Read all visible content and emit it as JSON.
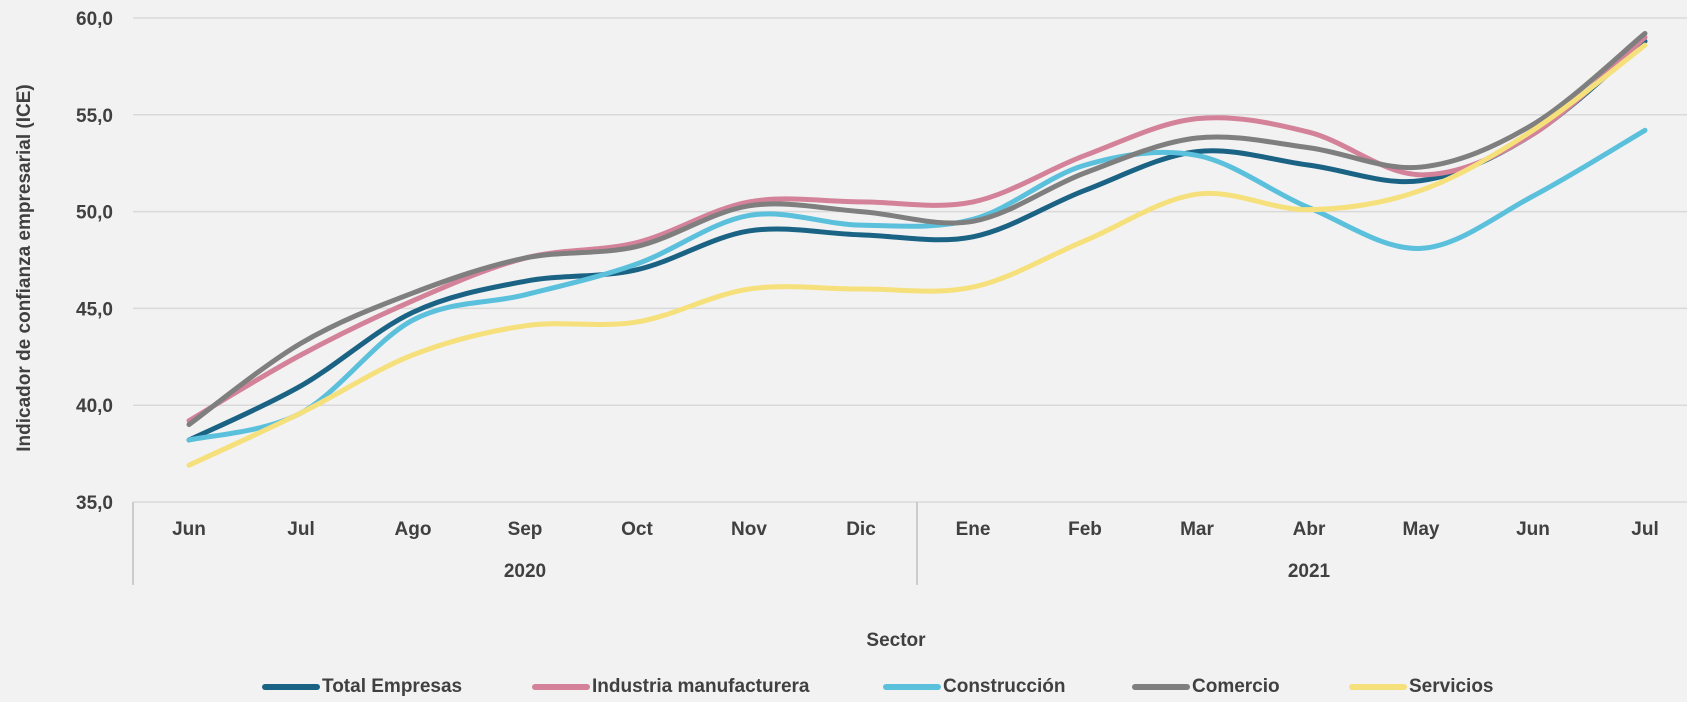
{
  "chart_data": {
    "type": "line",
    "ylabel": "Indicador de confianza empresarial (ICE)",
    "xlabel": "Sector",
    "ylim": [
      35,
      60
    ],
    "yticks": [
      "35,0",
      "40,0",
      "45,0",
      "50,0",
      "55,0",
      "60,0"
    ],
    "grid": true,
    "legend_position": "bottom",
    "categories": [
      "Jun",
      "Jul",
      "Ago",
      "Sep",
      "Oct",
      "Nov",
      "Dic",
      "Ene",
      "Feb",
      "Mar",
      "Abr",
      "May",
      "Jun",
      "Jul"
    ],
    "year_groups": [
      {
        "label": "2020",
        "count": 7
      },
      {
        "label": "2021",
        "count": 7
      }
    ],
    "series": [
      {
        "name": "Total Empresas",
        "color": "#1b6384",
        "values": [
          38.2,
          41.0,
          44.8,
          46.4,
          47.0,
          49.0,
          48.8,
          48.7,
          51.1,
          53.1,
          52.4,
          51.6,
          54.0,
          58.8
        ]
      },
      {
        "name": "Industria manufacturera",
        "color": "#d4829a",
        "values": [
          39.2,
          42.6,
          45.4,
          47.6,
          48.4,
          50.5,
          50.5,
          50.5,
          52.9,
          54.8,
          54.1,
          51.9,
          54.0,
          59.0
        ]
      },
      {
        "name": "Construcción",
        "color": "#5bc0dc",
        "values": [
          38.2,
          39.6,
          44.4,
          45.7,
          47.3,
          49.8,
          49.3,
          49.6,
          52.4,
          52.9,
          50.2,
          48.1,
          50.8,
          54.2
        ]
      },
      {
        "name": "Comercio",
        "color": "#7f7f7f",
        "values": [
          39.0,
          43.2,
          45.8,
          47.6,
          48.2,
          50.3,
          50.0,
          49.5,
          52.0,
          53.8,
          53.3,
          52.3,
          54.5,
          59.2
        ]
      },
      {
        "name": "Servicios",
        "color": "#f5e07c",
        "values": [
          36.9,
          39.6,
          42.6,
          44.1,
          44.3,
          46.0,
          46.0,
          46.1,
          48.5,
          50.9,
          50.1,
          51.1,
          54.2,
          58.6
        ]
      }
    ]
  }
}
